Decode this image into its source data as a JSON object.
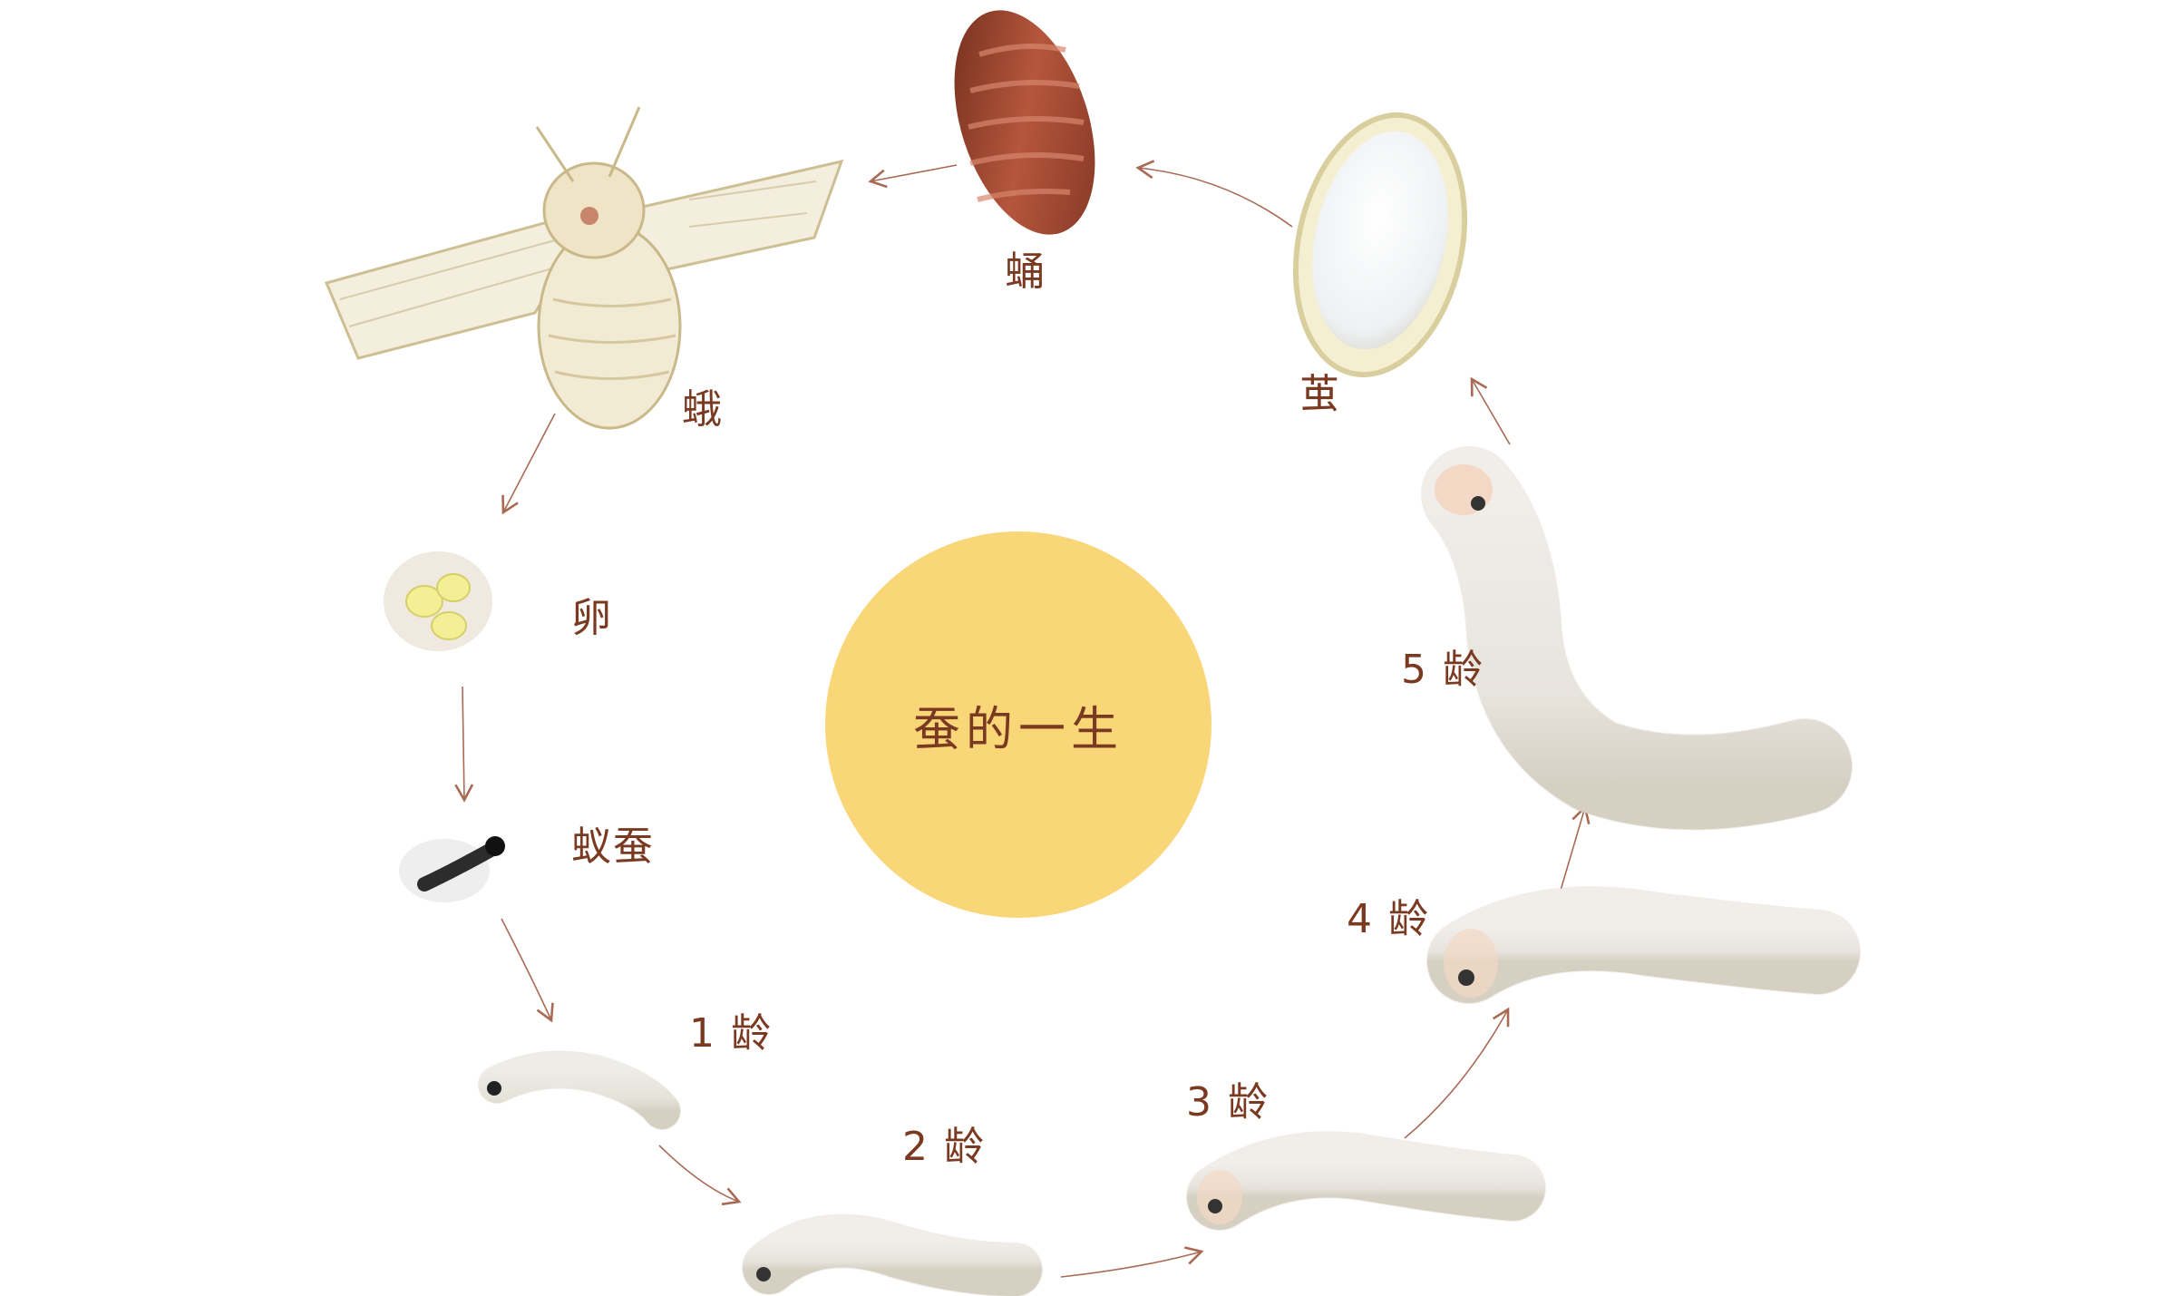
{
  "title": "蚕的一生",
  "stages": {
    "pupa": "蛹",
    "moth": "蛾",
    "cocoon": "茧",
    "egg": "卵",
    "larva_newborn": "蚁蚕",
    "instar1": "1 龄",
    "instar2": "2 龄",
    "instar3": "3 龄",
    "instar4": "4 龄",
    "instar5": "5 龄"
  },
  "colors": {
    "label": "#7a3a22",
    "center_circle": "#f9d677",
    "arrow": "#a86a55"
  }
}
